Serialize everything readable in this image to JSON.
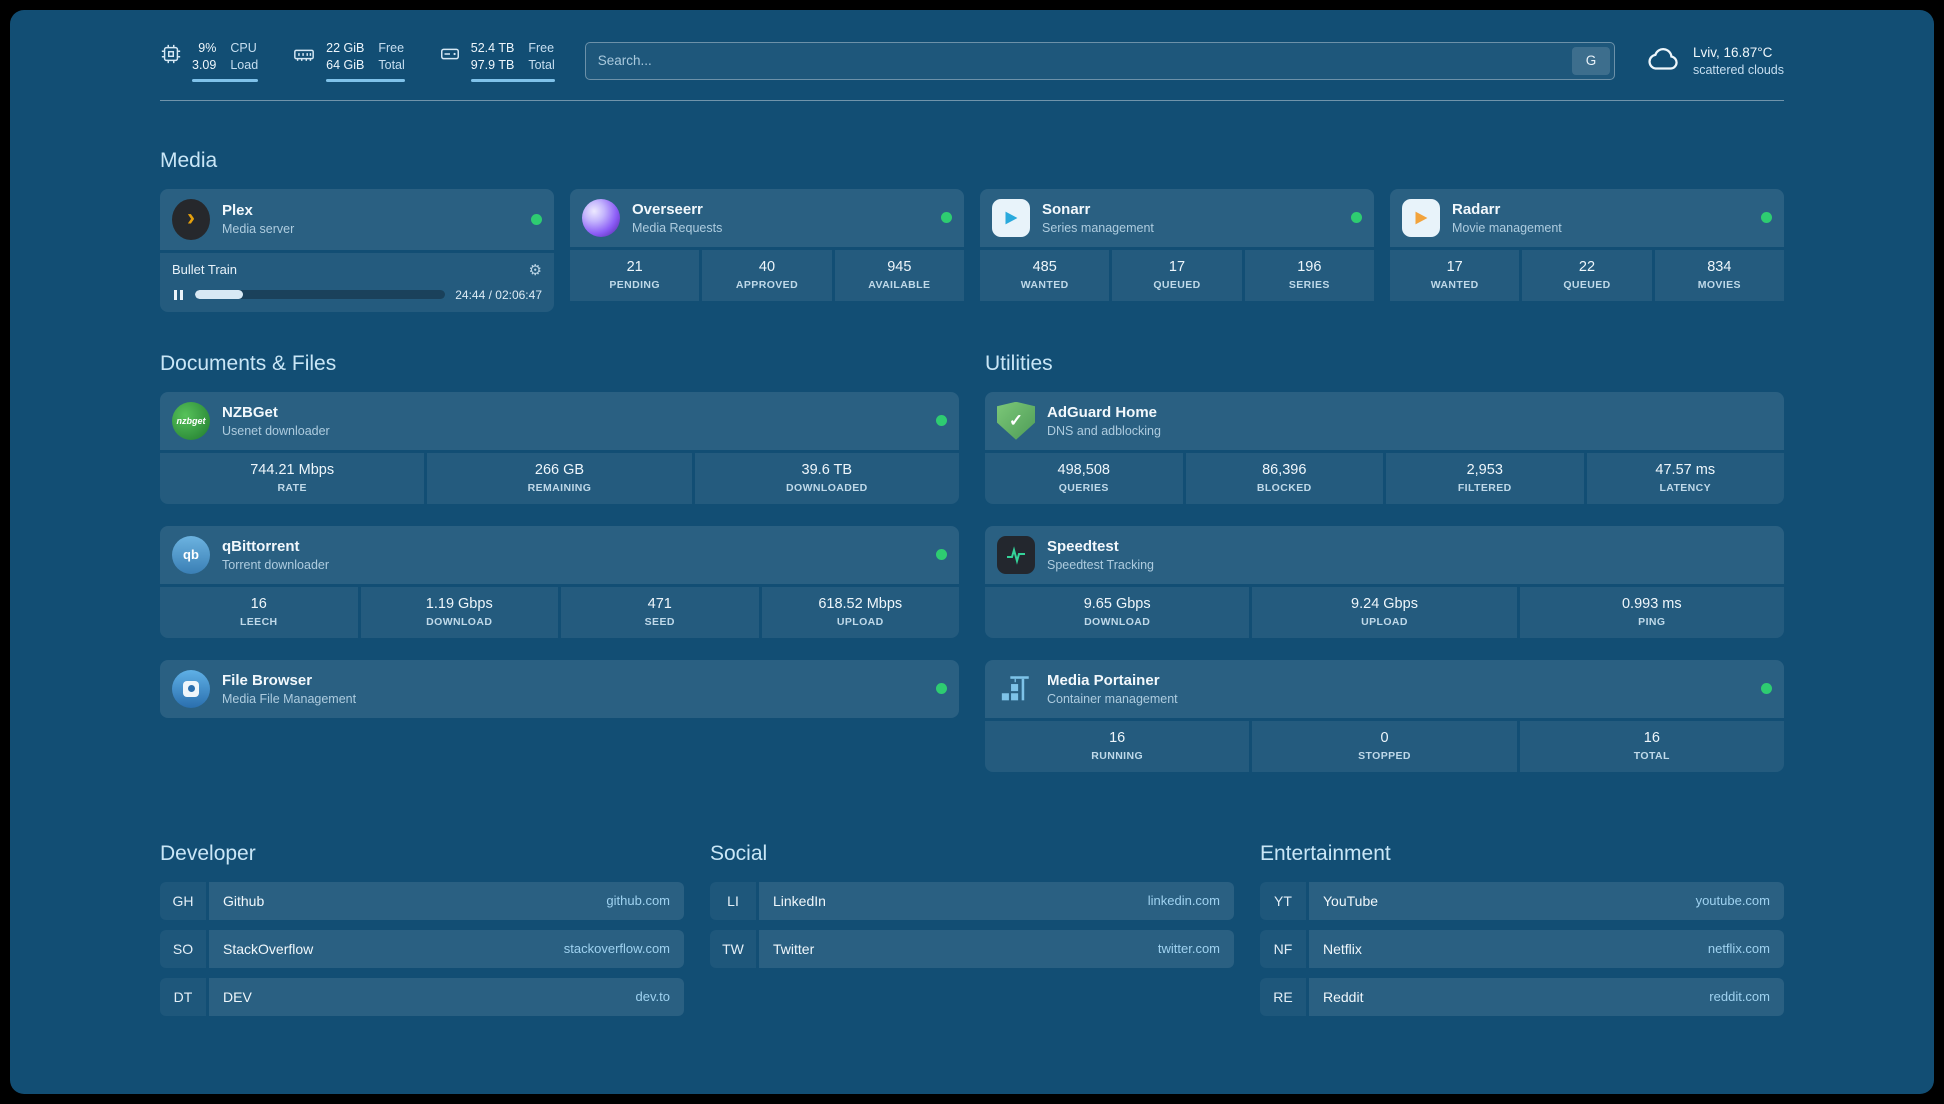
{
  "icons": {
    "gear": "⚙",
    "check": "✓",
    "plex_arrow": "›"
  },
  "topbar": {
    "resources": [
      {
        "name": "cpu",
        "value_top": "9%",
        "value_bottom": "3.09",
        "label_top": "CPU",
        "label_bottom": "Load"
      },
      {
        "name": "memory",
        "value_top": "22 GiB",
        "value_bottom": "64 GiB",
        "label_top": "Free",
        "label_bottom": "Total"
      },
      {
        "name": "disk",
        "value_top": "52.4 TB",
        "value_bottom": "97.9 TB",
        "label_top": "Free",
        "label_bottom": "Total"
      }
    ],
    "search": {
      "placeholder": "Search...",
      "provider_button": "G"
    },
    "weather": {
      "location": "Lviv, 16.87°C",
      "condition": "scattered clouds"
    }
  },
  "sections": {
    "media": {
      "title": "Media",
      "plex": {
        "name": "Plex",
        "subtitle": "Media server",
        "now_playing": {
          "title": "Bullet Train",
          "time": "24:44 / 02:06:47",
          "progress_percent": 19
        }
      },
      "overseerr": {
        "name": "Overseerr",
        "subtitle": "Media Requests",
        "stats": [
          {
            "value": "21",
            "label": "PENDING"
          },
          {
            "value": "40",
            "label": "APPROVED"
          },
          {
            "value": "945",
            "label": "AVAILABLE"
          }
        ]
      },
      "sonarr": {
        "name": "Sonarr",
        "subtitle": "Series management",
        "stats": [
          {
            "value": "485",
            "label": "WANTED"
          },
          {
            "value": "17",
            "label": "QUEUED"
          },
          {
            "value": "196",
            "label": "SERIES"
          }
        ]
      },
      "radarr": {
        "name": "Radarr",
        "subtitle": "Movie management",
        "stats": [
          {
            "value": "17",
            "label": "WANTED"
          },
          {
            "value": "22",
            "label": "QUEUED"
          },
          {
            "value": "834",
            "label": "MOVIES"
          }
        ]
      }
    },
    "documents": {
      "title": "Documents & Files",
      "nzbget": {
        "name": "NZBGet",
        "subtitle": "Usenet downloader",
        "icon_text": "nzbget",
        "stats": [
          {
            "value": "744.21 Mbps",
            "label": "RATE"
          },
          {
            "value": "266 GB",
            "label": "REMAINING"
          },
          {
            "value": "39.6 TB",
            "label": "DOWNLOADED"
          }
        ]
      },
      "qbittorrent": {
        "name": "qBittorrent",
        "subtitle": "Torrent downloader",
        "icon_text": "qb",
        "stats": [
          {
            "value": "16",
            "label": "LEECH"
          },
          {
            "value": "1.19 Gbps",
            "label": "DOWNLOAD"
          },
          {
            "value": "471",
            "label": "SEED"
          },
          {
            "value": "618.52 Mbps",
            "label": "UPLOAD"
          }
        ]
      },
      "filebrowser": {
        "name": "File Browser",
        "subtitle": "Media File Management"
      }
    },
    "utilities": {
      "title": "Utilities",
      "adguard": {
        "name": "AdGuard Home",
        "subtitle": "DNS and adblocking",
        "stats": [
          {
            "value": "498,508",
            "label": "QUERIES"
          },
          {
            "value": "86,396",
            "label": "BLOCKED"
          },
          {
            "value": "2,953",
            "label": "FILTERED"
          },
          {
            "value": "47.57 ms",
            "label": "LATENCY"
          }
        ]
      },
      "speedtest": {
        "name": "Speedtest",
        "subtitle": "Speedtest Tracking",
        "stats": [
          {
            "value": "9.65 Gbps",
            "label": "DOWNLOAD"
          },
          {
            "value": "9.24 Gbps",
            "label": "UPLOAD"
          },
          {
            "value": "0.993 ms",
            "label": "PING"
          }
        ]
      },
      "portainer": {
        "name": "Media Portainer",
        "subtitle": "Container management",
        "stats": [
          {
            "value": "16",
            "label": "RUNNING"
          },
          {
            "value": "0",
            "label": "STOPPED"
          },
          {
            "value": "16",
            "label": "TOTAL"
          }
        ]
      }
    }
  },
  "bookmarks": [
    {
      "title": "Developer",
      "items": [
        {
          "abbr": "GH",
          "name": "Github",
          "domain": "github.com"
        },
        {
          "abbr": "SO",
          "name": "StackOverflow",
          "domain": "stackoverflow.com"
        },
        {
          "abbr": "DT",
          "name": "DEV",
          "domain": "dev.to"
        }
      ]
    },
    {
      "title": "Social",
      "items": [
        {
          "abbr": "LI",
          "name": "LinkedIn",
          "domain": "linkedin.com"
        },
        {
          "abbr": "TW",
          "name": "Twitter",
          "domain": "twitter.com"
        }
      ]
    },
    {
      "title": "Entertainment",
      "items": [
        {
          "abbr": "YT",
          "name": "YouTube",
          "domain": "youtube.com"
        },
        {
          "abbr": "NF",
          "name": "Netflix",
          "domain": "netflix.com"
        },
        {
          "abbr": "RE",
          "name": "Reddit",
          "domain": "reddit.com"
        }
      ]
    }
  ],
  "colors": {
    "accent_bar": "#7fc2ea",
    "status_online": "#2ecc71"
  }
}
